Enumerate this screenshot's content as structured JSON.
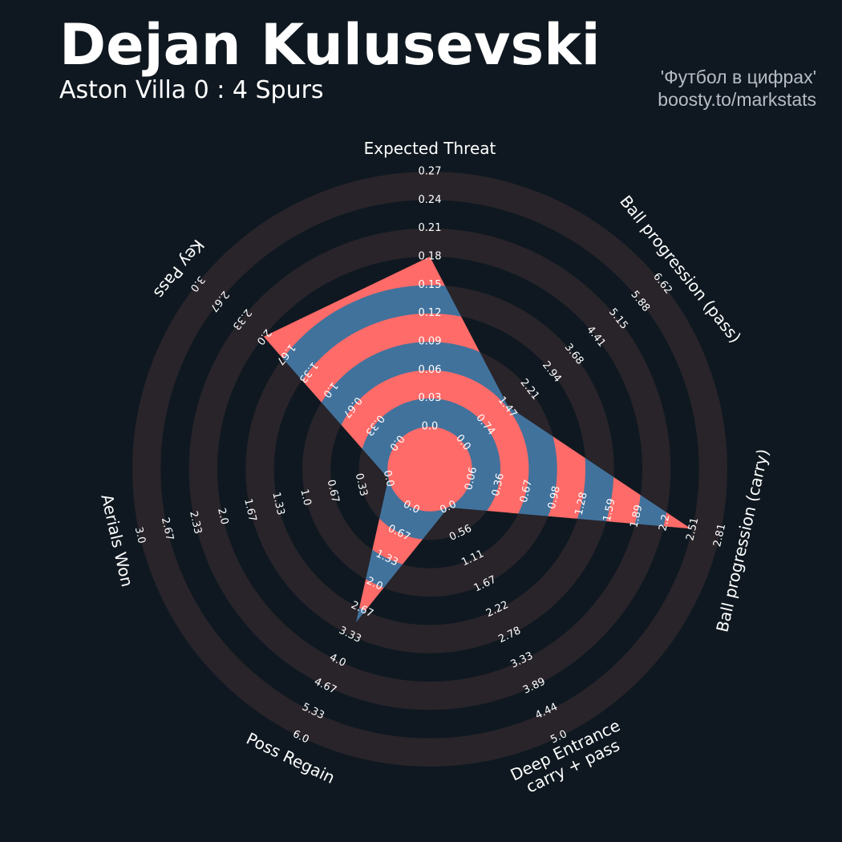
{
  "chart_data": {
    "type": "radar",
    "title": "Dejan Kulusevski",
    "subtitle": "Aston Villa 0 : 4 Spurs",
    "credits": [
      "'Футбол в цифрах'",
      "boosty.to/markstats"
    ],
    "colors": [
      "#ff6b68",
      "#41729c"
    ],
    "params": [
      {
        "name": [
          "Expected Threat"
        ],
        "value": 0.18,
        "lim": [
          0,
          0.27
        ],
        "ticks": [
          {
            "value": 0,
            "label": "0.0"
          },
          0.03,
          0.06,
          0.09,
          0.12,
          0.15,
          0.18,
          0.21,
          0.24,
          0.27
        ]
      },
      {
        "name": [
          "Ball progression (pass)"
        ],
        "value": 1.5,
        "lim": [
          0,
          6.62
        ],
        "ticks": [
          {
            "value": 0,
            "label": "0.0"
          },
          0.74,
          1.47,
          2.21,
          2.94,
          3.68,
          4.41,
          5.15,
          5.88,
          6.62
        ]
      },
      {
        "name": [
          "Ball progression (carry)"
        ],
        "value": 2.49,
        "lim": [
          0.06,
          2.81
        ],
        "ticks": [
          0.06,
          0.36,
          0.67,
          0.98,
          1.28,
          1.59,
          1.89,
          2.2,
          2.51,
          2.81
        ]
      },
      {
        "name": [
          "Deep Entrance",
          "carry + pass"
        ],
        "value": 0,
        "lim": [
          0,
          5
        ],
        "ticks": [
          {
            "value": 0,
            "label": "0.0"
          },
          0.56,
          1.11,
          1.67,
          2.22,
          2.78,
          3.33,
          3.89,
          4.44,
          {
            "value": 5,
            "label": "5.0"
          }
        ]
      },
      {
        "name": [
          "Poss Regain"
        ],
        "value": 3,
        "lim": [
          0,
          6
        ],
        "ticks": [
          {
            "value": 0,
            "label": "0.0"
          },
          0.67,
          1.33,
          {
            "value": 2,
            "label": "2.0"
          },
          2.67,
          3.33,
          {
            "value": 4,
            "label": "4.0"
          },
          4.67,
          5.33,
          {
            "value": 6,
            "label": "6.0"
          }
        ]
      },
      {
        "name": [
          "Aerials Won"
        ],
        "value": 0,
        "lim": [
          0,
          3
        ],
        "ticks": [
          {
            "value": 0,
            "label": "0.0"
          },
          0.33,
          0.67,
          {
            "value": 1,
            "label": "1.0"
          },
          1.33,
          1.67,
          {
            "value": 2,
            "label": "2.0"
          },
          2.33,
          2.67,
          {
            "value": 3,
            "label": "3.0"
          }
        ]
      },
      {
        "name": [
          "Key Pass"
        ],
        "value": 2,
        "lim": [
          0,
          3
        ],
        "ticks": [
          {
            "value": 0,
            "label": "0.0"
          },
          0.33,
          0.67,
          {
            "value": 1,
            "label": "1.0"
          },
          1.33,
          1.67,
          {
            "value": 2,
            "label": "2.0"
          },
          2.33,
          2.67,
          {
            "value": 3,
            "label": "3.0"
          }
        ]
      }
    ]
  }
}
